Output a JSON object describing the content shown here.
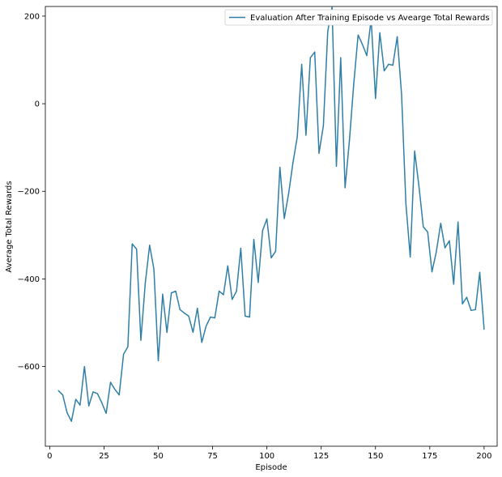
{
  "chart_data": {
    "type": "line",
    "xlabel": "Episode",
    "ylabel": "Average Total Rewards",
    "xlim": [
      -2,
      206
    ],
    "ylim": [
      -782,
      222
    ],
    "xticks": [
      0,
      25,
      50,
      75,
      100,
      125,
      150,
      175,
      200
    ],
    "yticks": [
      -600,
      -400,
      -200,
      0,
      200
    ],
    "xtick_labels": [
      "0",
      "25",
      "50",
      "75",
      "100",
      "125",
      "150",
      "175",
      "200"
    ],
    "ytick_labels": [
      "−600",
      "−400",
      "−200",
      "0",
      "200"
    ],
    "grid": false,
    "legend_position": "top-right",
    "line_color": "#2f7fa6",
    "series": [
      {
        "name": "Evaluation After Training Episode vs Avearge Total Rewards",
        "x": [
          4,
          6,
          8,
          10,
          12,
          14,
          16,
          18,
          20,
          22,
          24,
          26,
          28,
          30,
          32,
          34,
          36,
          38,
          40,
          42,
          44,
          46,
          48,
          50,
          52,
          54,
          56,
          58,
          60,
          62,
          64,
          66,
          68,
          70,
          72,
          74,
          76,
          78,
          80,
          82,
          84,
          86,
          88,
          90,
          92,
          94,
          96,
          98,
          100,
          102,
          104,
          106,
          108,
          110,
          112,
          114,
          116,
          118,
          120,
          122,
          124,
          126,
          128,
          130,
          132,
          134,
          136,
          138,
          140,
          142,
          144,
          146,
          148,
          150,
          152,
          154,
          156,
          158,
          160,
          162,
          164,
          166,
          168,
          170,
          172,
          174,
          176,
          178,
          180,
          182,
          184,
          186,
          188,
          190,
          192,
          194,
          196,
          198,
          200
        ],
        "y": [
          -655,
          -665,
          -705,
          -725,
          -675,
          -688,
          -600,
          -690,
          -658,
          -662,
          -683,
          -707,
          -636,
          -652,
          -665,
          -572,
          -555,
          -320,
          -332,
          -540,
          -410,
          -323,
          -378,
          -587,
          -435,
          -522,
          -432,
          -428,
          -470,
          -478,
          -485,
          -522,
          -467,
          -545,
          -508,
          -487,
          -489,
          -428,
          -436,
          -370,
          -447,
          -428,
          -330,
          -485,
          -487,
          -310,
          -408,
          -290,
          -263,
          -352,
          -337,
          -145,
          -262,
          -205,
          -135,
          -75,
          90,
          -72,
          105,
          118,
          -113,
          -50,
          165,
          220,
          -143,
          105,
          -192,
          -83,
          45,
          157,
          135,
          110,
          193,
          12,
          162,
          75,
          90,
          88,
          153,
          20,
          -228,
          -350,
          -108,
          -188,
          -281,
          -293,
          -384,
          -338,
          -273,
          -329,
          -313,
          -412,
          -270,
          -457,
          -442,
          -472,
          -470,
          -385,
          -515
        ]
      }
    ]
  }
}
